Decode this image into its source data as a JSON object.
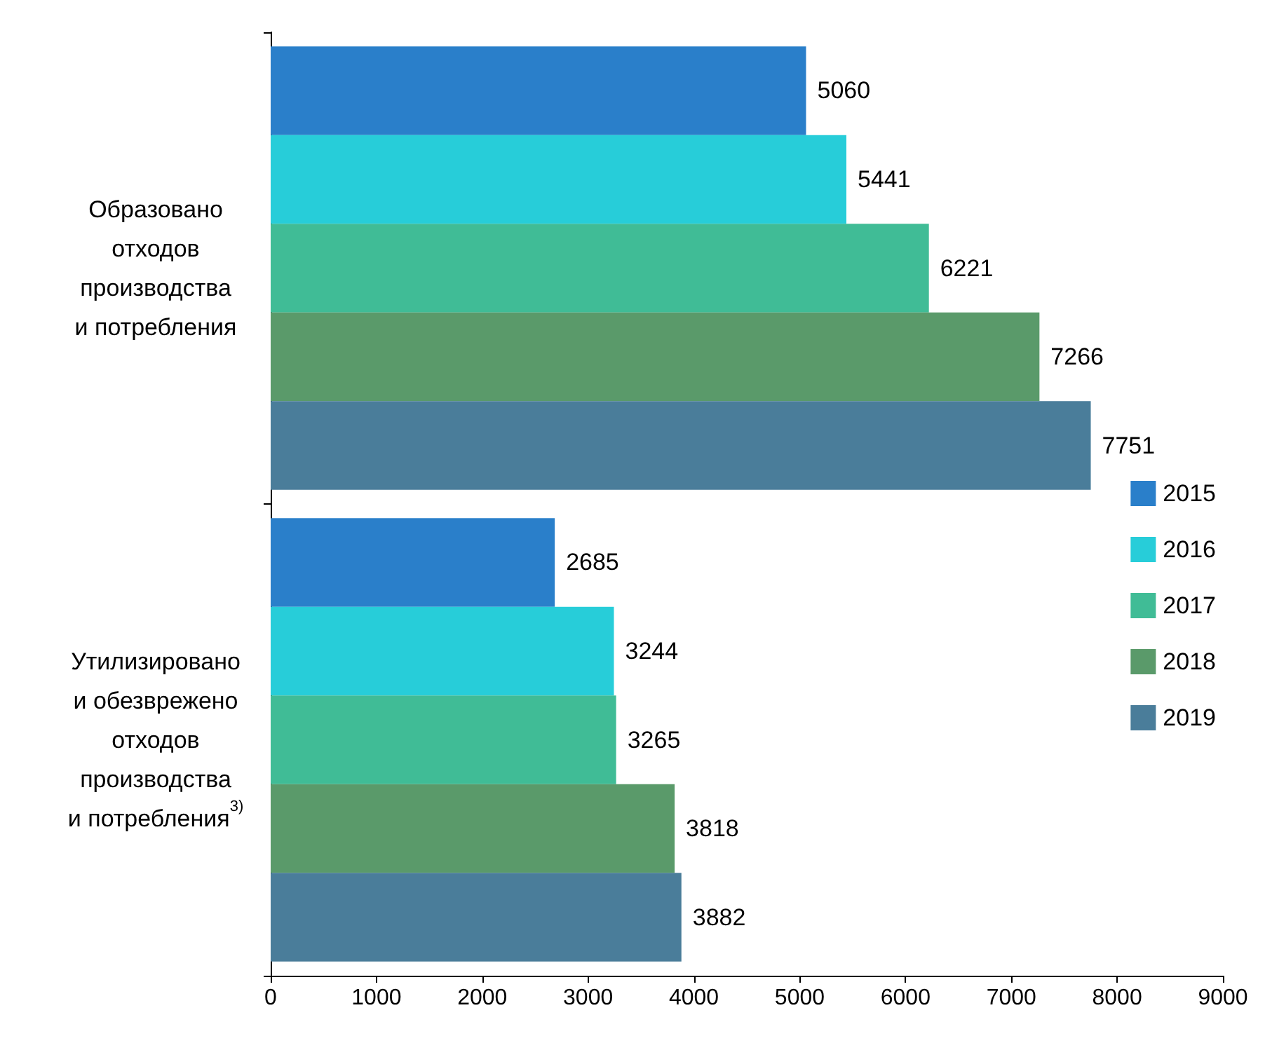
{
  "chart_data": {
    "type": "bar",
    "orientation": "horizontal",
    "categories": [
      "Образовано\nотходов\nпроизводства\nи потребления",
      "Утилизировано\nи обезврежено\nотходов\nпроизводства\nи потребления$^{3)}$"
    ],
    "series": [
      {
        "name": "2015",
        "color": "#2a7fca",
        "values": [
          5060,
          2685
        ]
      },
      {
        "name": "2016",
        "color": "#27cdd9",
        "values": [
          5441,
          3244
        ]
      },
      {
        "name": "2017",
        "color": "#40bc96",
        "values": [
          6221,
          3265
        ]
      },
      {
        "name": "2018",
        "color": "#5a9a6a",
        "values": [
          7266,
          3818
        ]
      },
      {
        "name": "2019",
        "color": "#4a7d9a",
        "values": [
          7751,
          3882
        ]
      }
    ],
    "xlim": [
      0,
      9000
    ],
    "xticks": [
      0,
      1000,
      2000,
      3000,
      4000,
      5000,
      6000,
      7000,
      8000,
      9000
    ],
    "data_labels": true,
    "grid": false,
    "legend": "right"
  }
}
